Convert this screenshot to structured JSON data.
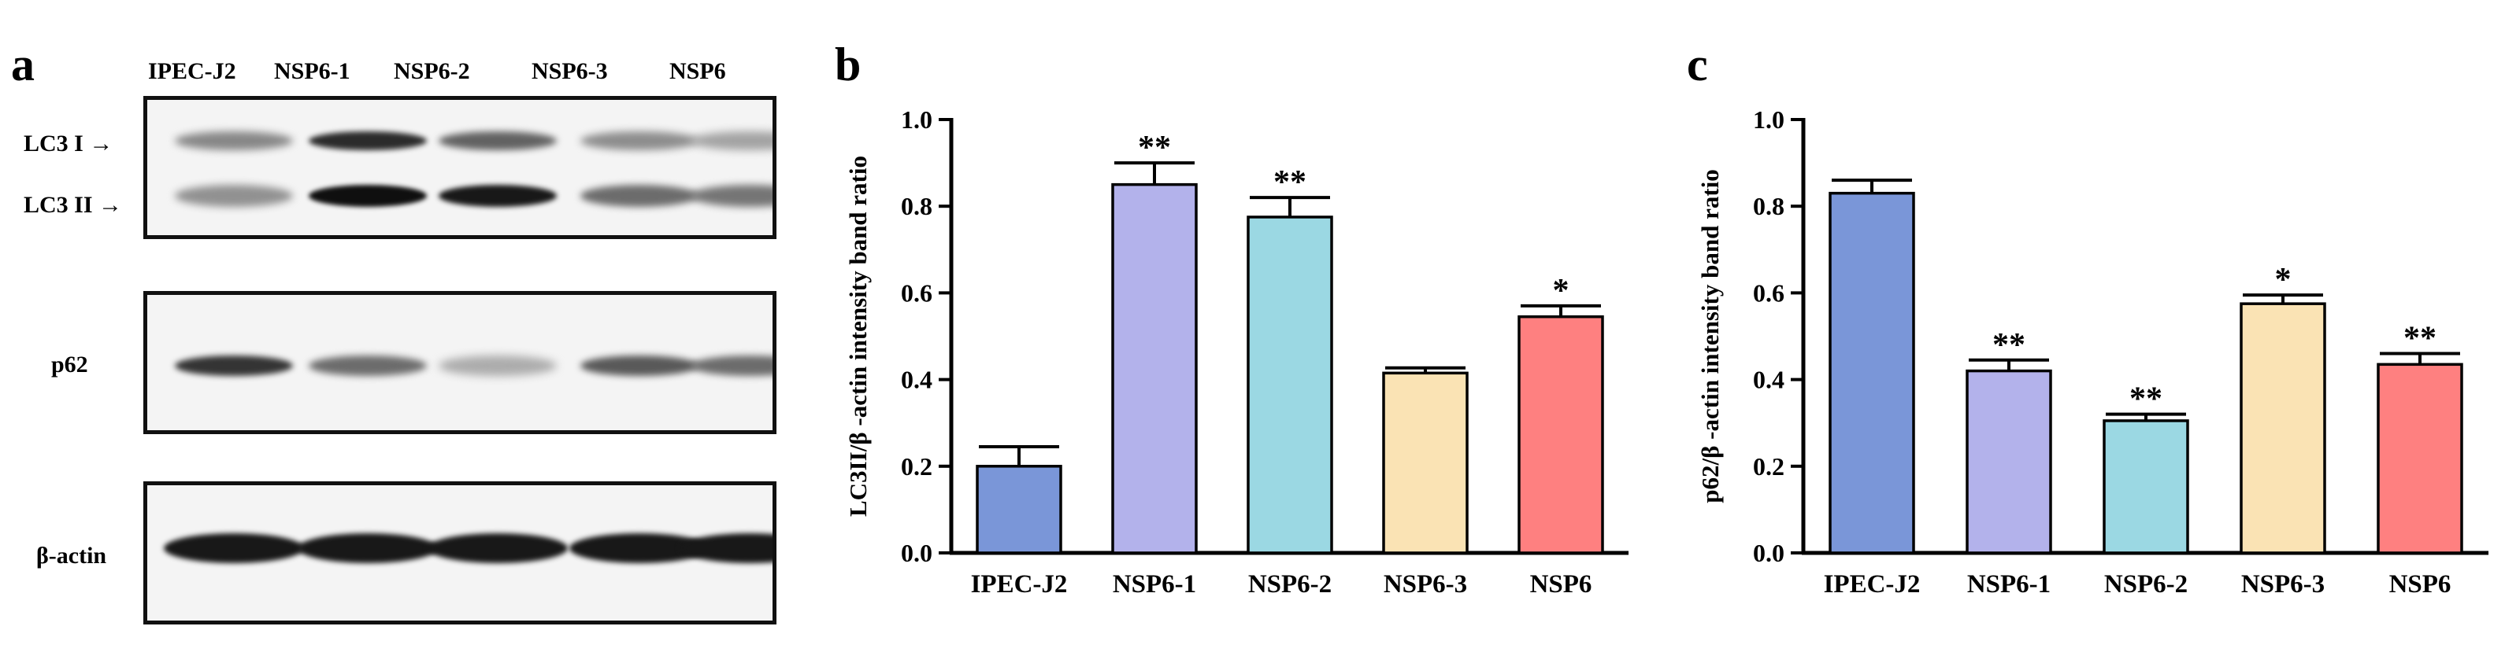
{
  "panels": {
    "a": "a",
    "b": "b",
    "c": "c"
  },
  "blot": {
    "lanes": [
      "IPEC-J2",
      "NSP6-1",
      "NSP6-2",
      "NSP6-3",
      "NSP6"
    ],
    "rows": [
      {
        "label": "LC3 I",
        "arrow": "→"
      },
      {
        "label": "LC3 II",
        "arrow": "→"
      },
      {
        "label": "p62",
        "arrow": ""
      },
      {
        "label": "β-actin",
        "arrow": ""
      }
    ],
    "intensities": {
      "lc3_1": [
        0.35,
        0.85,
        0.55,
        0.32,
        0.2
      ],
      "lc3_2": [
        0.3,
        1.0,
        0.95,
        0.5,
        0.45
      ],
      "p62": [
        0.8,
        0.5,
        0.15,
        0.6,
        0.5
      ],
      "actin": [
        0.95,
        0.95,
        0.95,
        0.95,
        0.95
      ]
    }
  },
  "chart_data": [
    {
      "type": "bar",
      "categories": [
        "IPEC-J2",
        "NSP6-1",
        "NSP6-2",
        "NSP6-3",
        "NSP6"
      ],
      "values": [
        0.2,
        0.85,
        0.775,
        0.415,
        0.545
      ],
      "errors": [
        0.045,
        0.05,
        0.045,
        0.012,
        0.025
      ],
      "significance": [
        "",
        "**",
        "**",
        "",
        "*"
      ],
      "colors": [
        "#7a96d8",
        "#b3b2eb",
        "#9bd8e3",
        "#fae3b4",
        "#fe8080"
      ],
      "ylabel": "LC3II/β -actin intensity band ratio",
      "xlabel": "",
      "ylim": [
        0,
        1.0
      ],
      "yticks": [
        "0.0",
        "0.2",
        "0.4",
        "0.6",
        "0.8",
        "1.0"
      ]
    },
    {
      "type": "bar",
      "categories": [
        "IPEC-J2",
        "NSP6-1",
        "NSP6-2",
        "NSP6-3",
        "NSP6"
      ],
      "values": [
        0.83,
        0.42,
        0.305,
        0.575,
        0.435
      ],
      "errors": [
        0.03,
        0.025,
        0.015,
        0.02,
        0.025
      ],
      "significance": [
        "",
        "**",
        "**",
        "*",
        "**"
      ],
      "colors": [
        "#7a96d8",
        "#b3b2eb",
        "#9bd8e3",
        "#fae3b4",
        "#fe8080"
      ],
      "ylabel": "p62/β -actin intensity band ratio",
      "xlabel": "",
      "ylim": [
        0,
        1.0
      ],
      "yticks": [
        "0.0",
        "0.2",
        "0.4",
        "0.6",
        "0.8",
        "1.0"
      ]
    }
  ]
}
